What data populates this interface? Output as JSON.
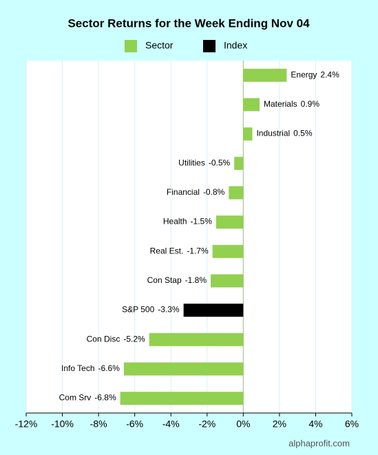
{
  "chart_data": {
    "type": "bar",
    "orientation": "horizontal",
    "title": "Sector Returns for the Week Ending Nov 04",
    "categories": [
      "Energy",
      "Materials",
      "Industrial",
      "Utilities",
      "Financial",
      "Health",
      "Real Est.",
      "Con Stap",
      "S&P 500",
      "Con Disc",
      "Info Tech",
      "Com Srv"
    ],
    "series": [
      {
        "name": "Sector",
        "color": "#92d050",
        "values": [
          2.4,
          0.9,
          0.5,
          -0.5,
          -0.8,
          -1.5,
          -1.7,
          -1.8,
          null,
          -5.2,
          -6.6,
          -6.8
        ],
        "value_labels": [
          "2.4%",
          "0.9%",
          "0.5%",
          "-0.5%",
          "-0.8%",
          "-1.5%",
          "-1.7%",
          "-1.8%",
          null,
          "-5.2%",
          "-6.6%",
          "-6.8%"
        ]
      },
      {
        "name": "Index",
        "color": "#000000",
        "values": [
          null,
          null,
          null,
          null,
          null,
          null,
          null,
          null,
          -3.3,
          null,
          null,
          null
        ],
        "value_labels": [
          null,
          null,
          null,
          null,
          null,
          null,
          null,
          null,
          "-3.3%",
          null,
          null,
          null
        ]
      }
    ],
    "xlim": [
      -12,
      6
    ],
    "xticks": [
      {
        "value": -12,
        "label": "-12%"
      },
      {
        "value": -10,
        "label": "-10%"
      },
      {
        "value": -8,
        "label": "-8%"
      },
      {
        "value": -6,
        "label": "-6%"
      },
      {
        "value": -4,
        "label": "-4%"
      },
      {
        "value": -2,
        "label": "-2%"
      },
      {
        "value": 0,
        "label": "0%"
      },
      {
        "value": 2,
        "label": "2%"
      },
      {
        "value": 4,
        "label": "4%"
      },
      {
        "value": 6,
        "label": "6%"
      }
    ],
    "grid": true,
    "legend": "top",
    "source": "alphaprofit.com"
  }
}
